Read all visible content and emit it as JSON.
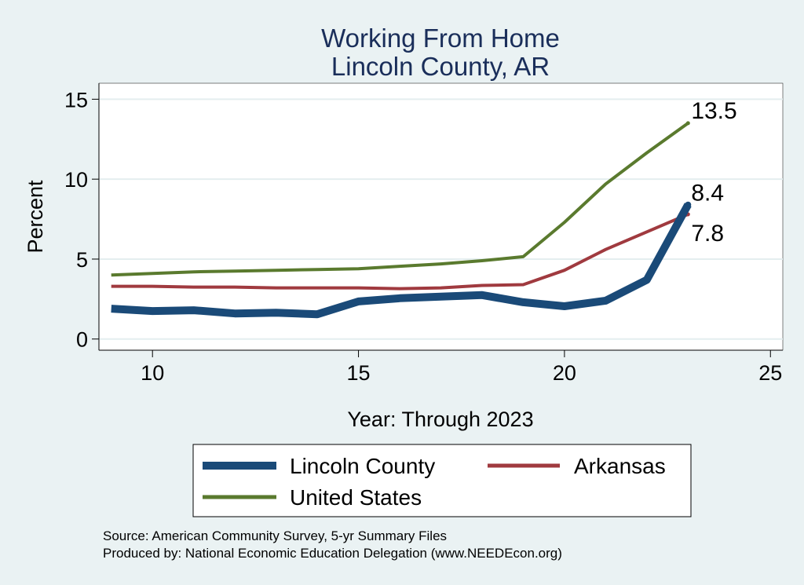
{
  "chart_data": {
    "type": "line",
    "title": "Working From Home",
    "subtitle": "Lincoln County, AR",
    "xlabel": "Year: Through 2023",
    "ylabel": "Percent",
    "x": [
      9,
      10,
      11,
      12,
      13,
      14,
      15,
      16,
      17,
      18,
      19,
      20,
      21,
      22,
      23
    ],
    "xlim": [
      8.7,
      25.3
    ],
    "ylim": [
      -0.7,
      16
    ],
    "xticks": [
      10,
      15,
      20,
      25
    ],
    "yticks": [
      0,
      5,
      10,
      15
    ],
    "grid": true,
    "legend_position": "bottom",
    "series": [
      {
        "name": "Lincoln County",
        "color": "#1a4a78",
        "values": [
          1.9,
          1.75,
          1.8,
          1.6,
          1.65,
          1.55,
          2.35,
          2.55,
          2.65,
          2.75,
          2.3,
          2.05,
          2.4,
          3.7,
          8.4
        ],
        "end_label": "8.4"
      },
      {
        "name": "Arkansas",
        "color": "#a03a3f",
        "values": [
          3.3,
          3.3,
          3.25,
          3.25,
          3.2,
          3.2,
          3.2,
          3.15,
          3.2,
          3.35,
          3.4,
          4.3,
          5.6,
          6.7,
          7.8
        ],
        "end_label": "7.8"
      },
      {
        "name": "United States",
        "color": "#5a7a2e",
        "values": [
          4.0,
          4.1,
          4.2,
          4.25,
          4.3,
          4.35,
          4.4,
          4.55,
          4.7,
          4.9,
          5.15,
          7.3,
          9.7,
          11.65,
          13.5
        ],
        "end_label": "13.5"
      }
    ],
    "source_line1": "Source: American Community Survey, 5-yr Summary Files",
    "source_line2": "Produced by: National Economic Education Delegation (www.NEEDEcon.org)"
  }
}
